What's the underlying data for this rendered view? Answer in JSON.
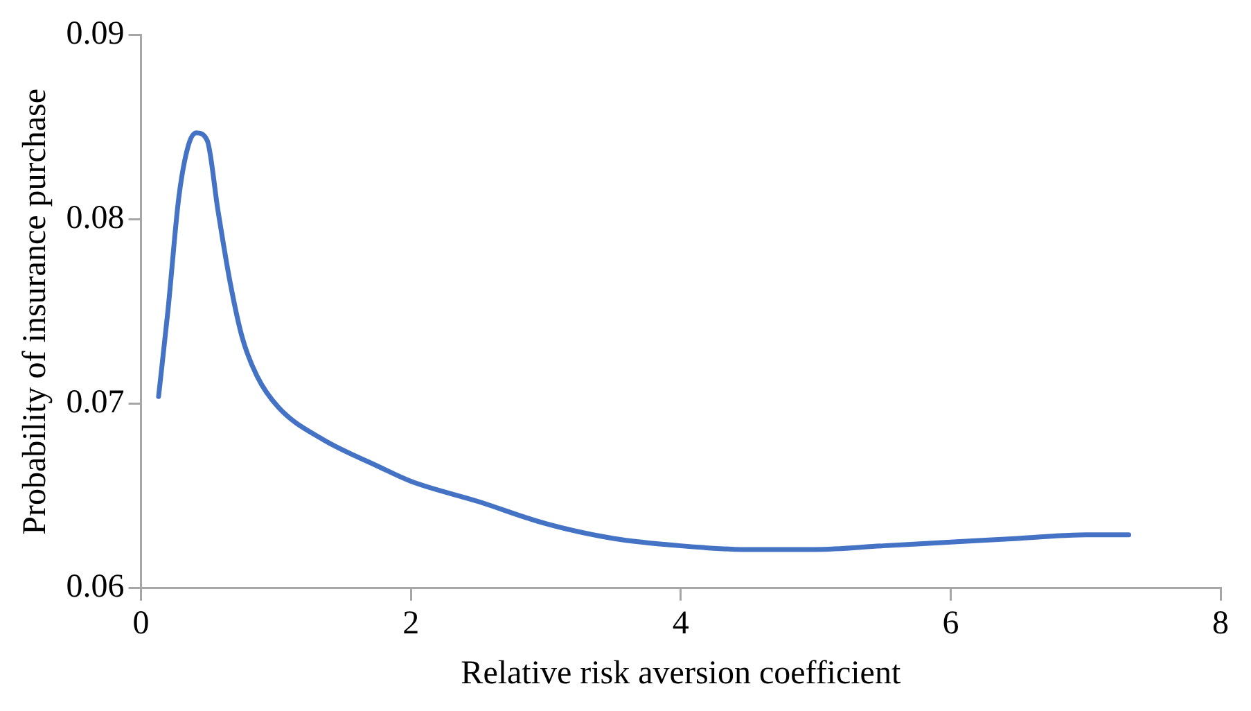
{
  "chart_data": {
    "type": "line",
    "xlabel": "Relative risk aversion coefficient",
    "ylabel": "Probability of insurance purchase",
    "xlim": [
      0,
      8
    ],
    "xticks": [
      0,
      2,
      4,
      6,
      8
    ],
    "ylim": [
      0.06,
      0.09
    ],
    "yticks": [
      0.06,
      0.07,
      0.08,
      0.09
    ],
    "grid": false,
    "legend": false,
    "marker": "none",
    "line_style": "solid",
    "series": [
      {
        "color": "#4472c4",
        "x": [
          0.13,
          0.2,
          0.28,
          0.35,
          0.41,
          0.49,
          0.57,
          0.66,
          0.75,
          0.86,
          1.02,
          1.34,
          1.76,
          2,
          2.5,
          3,
          3.5,
          4,
          4.5,
          5,
          5.5,
          6,
          6.5,
          7,
          7.32
        ],
        "values": [
          0.0704,
          0.0751,
          0.0812,
          0.084,
          0.0847,
          0.0843,
          0.0805,
          0.0766,
          0.0736,
          0.0715,
          0.0698,
          0.0681,
          0.0666,
          0.0658,
          0.0647,
          0.0635,
          0.0627,
          0.0623,
          0.0621,
          0.0621,
          0.0623,
          0.0625,
          0.0627,
          0.0629,
          0.0629
        ]
      }
    ]
  }
}
